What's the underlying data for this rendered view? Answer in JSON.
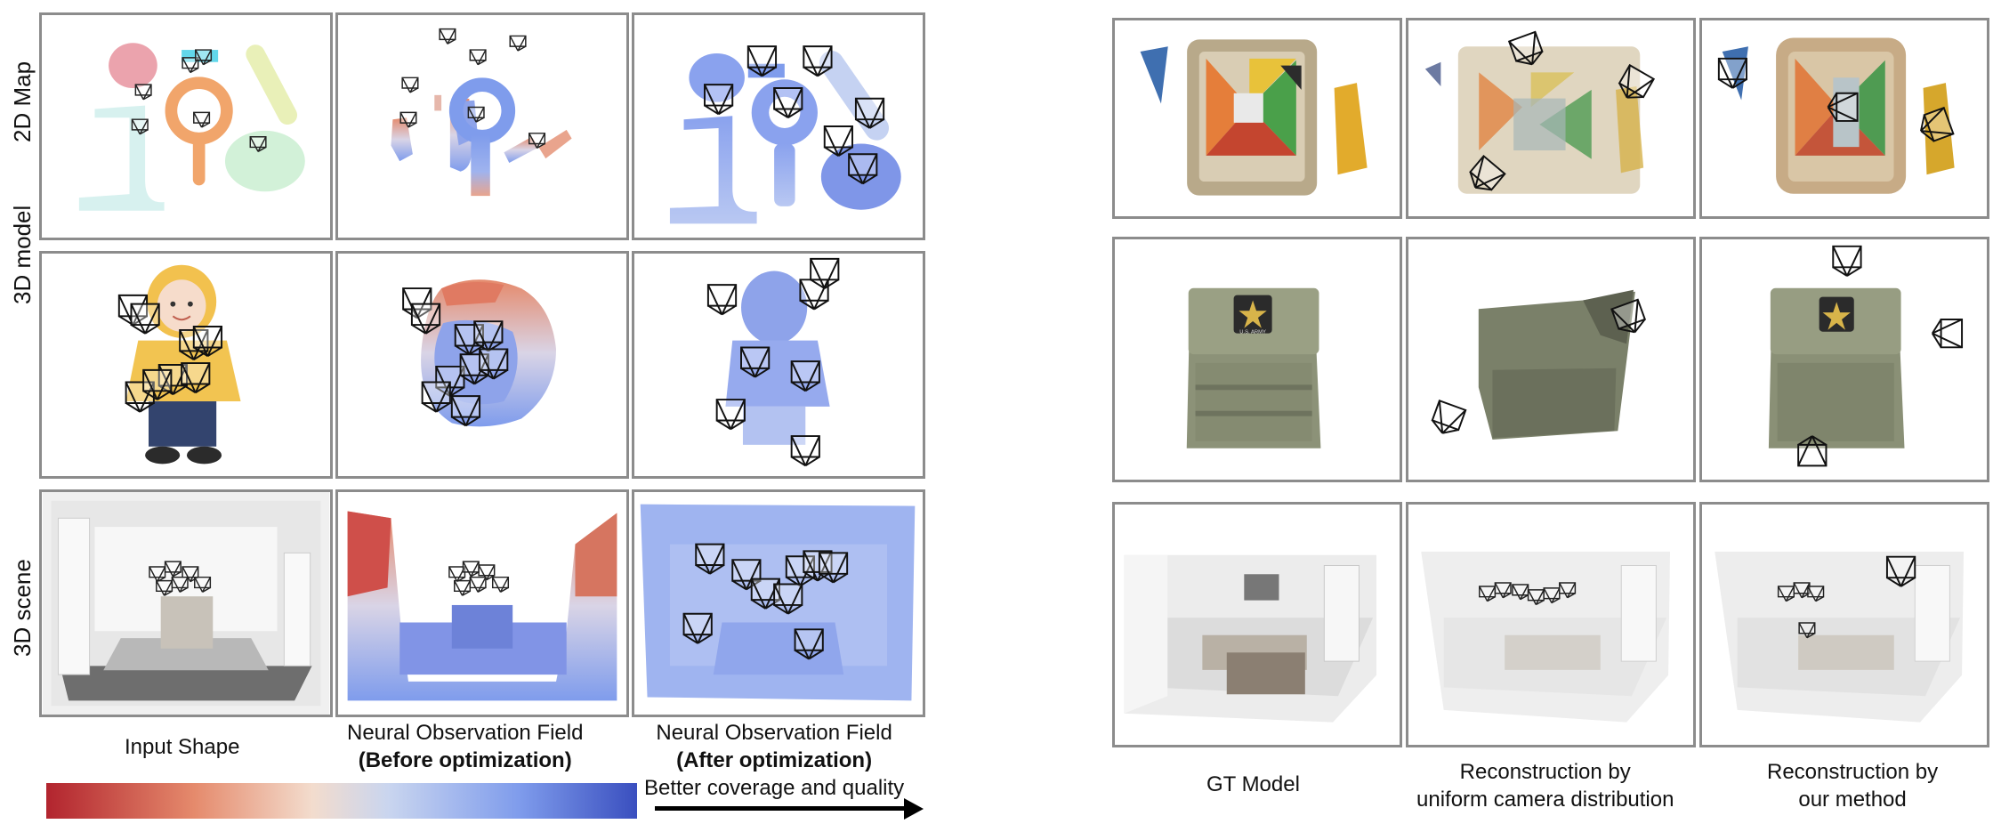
{
  "left_figure": {
    "row_labels": [
      "2D Map",
      "3D model",
      "3D scene"
    ],
    "captions": {
      "input_shape": "Input Shape",
      "nof_before_title": "Neural Observation Field",
      "nof_before_sub": "(Before optimization)",
      "nof_after_title": "Neural Observation Field",
      "nof_after_sub": "(After optimization)",
      "arrow_text": "Better coverage and quality"
    },
    "colorbar": {
      "colors": [
        "#b2242e",
        "#e58a6c",
        "#f3dccd",
        "#c9d5ef",
        "#7f9cec",
        "#3a4fbf"
      ]
    }
  },
  "right_figure": {
    "captions": {
      "gt_model": "GT Model",
      "uniform_line1": "Reconstruction by",
      "uniform_line2": "uniform camera distribution",
      "ours_line1": "Reconstruction by",
      "ours_line2": "our method"
    }
  },
  "badge_text": "U.S. ARMY"
}
